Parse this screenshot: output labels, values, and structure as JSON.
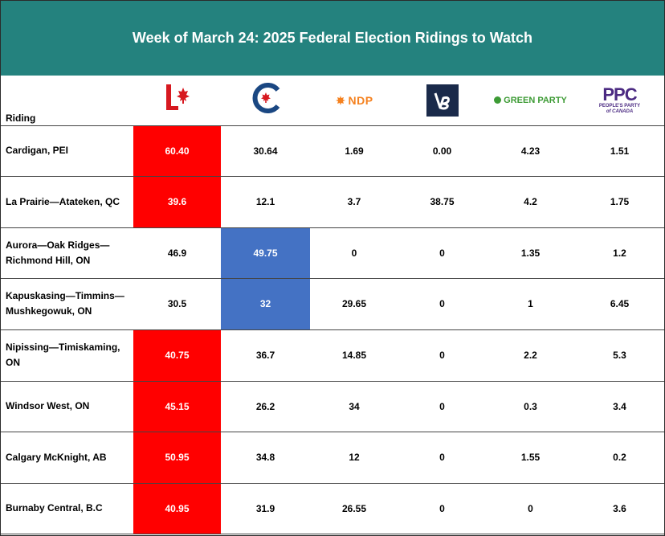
{
  "chart_data": {
    "type": "table",
    "title": "Week of March 24: 2025 Federal Election Ridings to Watch",
    "columns": [
      "Riding",
      "Liberal",
      "Conservative",
      "NDP",
      "Bloc Québécois",
      "Green Party",
      "PPC"
    ],
    "header": {
      "riding_label": "Riding",
      "ndp_logo_text": "NDP",
      "green_logo_text": "GREEN PARTY",
      "ppc_logo_text": "PPC",
      "ppc_logo_subtext": "PEOPLE'S PARTY",
      "ppc_logo_subtext2": "of CANADA"
    },
    "rows": [
      {
        "riding": "Cardigan, PEI",
        "values": [
          "60.40",
          "30.64",
          "1.69",
          "0.00",
          "4.23",
          "1.51"
        ],
        "leader": "liberal"
      },
      {
        "riding": "La Prairie—Atateken, QC",
        "values": [
          "39.6",
          "12.1",
          "3.7",
          "38.75",
          "4.2",
          "1.75"
        ],
        "leader": "liberal"
      },
      {
        "riding": "Aurora—Oak Ridges—Richmond Hill, ON",
        "values": [
          "46.9",
          "49.75",
          "0",
          "0",
          "1.35",
          "1.2"
        ],
        "leader": "conservative"
      },
      {
        "riding": "Kapuskasing—Timmins—Mushkegowuk, ON",
        "values": [
          "30.5",
          "32",
          "29.65",
          "0",
          "1",
          "6.45"
        ],
        "leader": "conservative"
      },
      {
        "riding": "Nipissing—Timiskaming, ON",
        "values": [
          "40.75",
          "36.7",
          "14.85",
          "0",
          "2.2",
          "5.3"
        ],
        "leader": "liberal"
      },
      {
        "riding": "Windsor West, ON",
        "values": [
          "45.15",
          "26.2",
          "34",
          "0",
          "0.3",
          "3.4"
        ],
        "leader": "liberal"
      },
      {
        "riding": "Calgary McKnight, AB",
        "values": [
          "50.95",
          "34.8",
          "12",
          "0",
          "1.55",
          "0.2"
        ],
        "leader": "liberal"
      },
      {
        "riding": "Burnaby Central, B.C",
        "values": [
          "40.95",
          "31.9",
          "26.55",
          "0",
          "0",
          "3.6"
        ],
        "leader": "liberal"
      }
    ],
    "colors": {
      "header_bg": "#24827e",
      "liberal_highlight": "#ff0000",
      "conservative_highlight": "#4472c4",
      "liberal_logo": "#d71920",
      "conservative_logo": "#1a4782",
      "ndp_logo": "#f58220",
      "bloc_logo_bg": "#1a2a4a",
      "green_logo": "#3d9b35",
      "ppc_logo": "#4b2a82"
    }
  }
}
